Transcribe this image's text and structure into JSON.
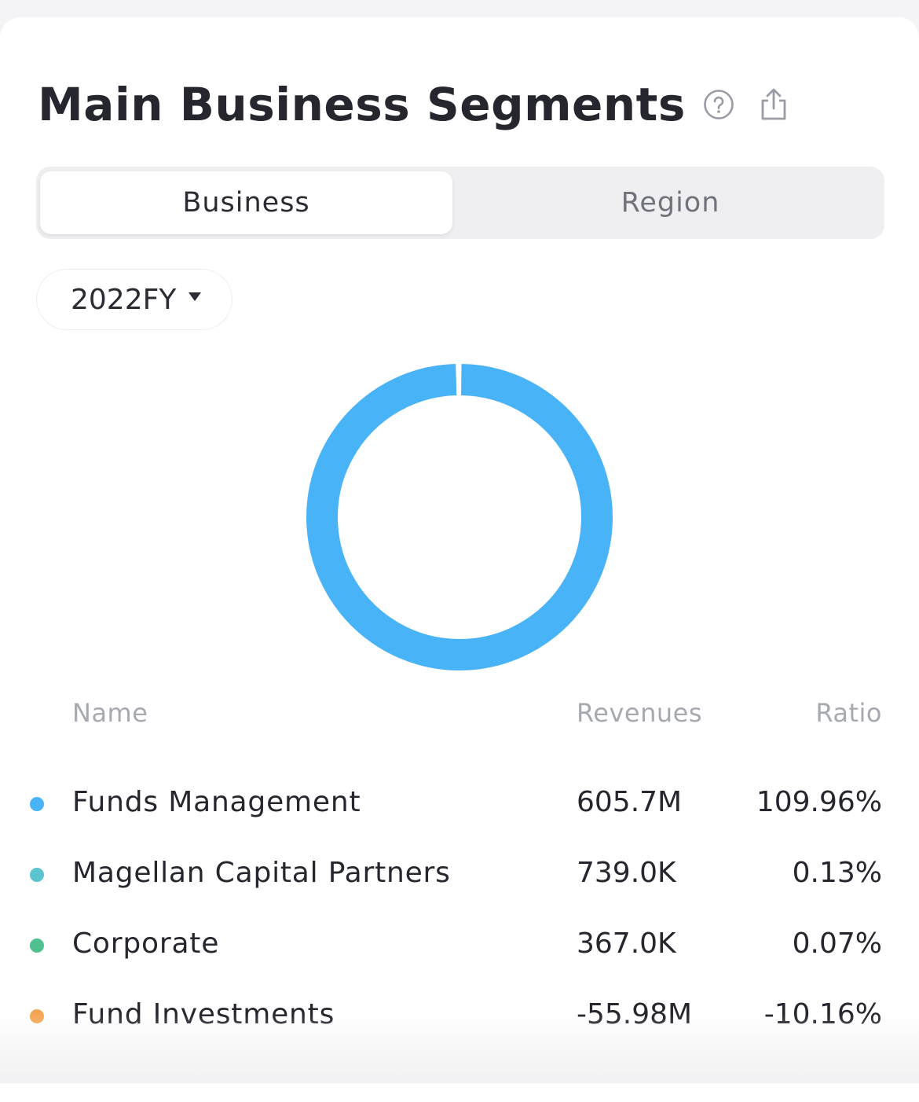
{
  "header": {
    "title": "Main Business Segments",
    "help_icon": "question-circle-icon",
    "share_icon": "share-icon"
  },
  "tabs": [
    {
      "label": "Business",
      "active": true
    },
    {
      "label": "Region",
      "active": false
    }
  ],
  "period": {
    "selected": "2022FY",
    "icon": "caret-down-icon"
  },
  "table": {
    "columns": {
      "name": "Name",
      "revenues": "Revenues",
      "ratio": "Ratio"
    },
    "rows": [
      {
        "name": "Funds Management",
        "revenues": "605.7M",
        "ratio": "109.96%",
        "color": "#49b3f8"
      },
      {
        "name": "Magellan Capital Partners",
        "revenues": "739.0K",
        "ratio": "0.13%",
        "color": "#5ac4cf"
      },
      {
        "name": "Corporate",
        "revenues": "367.0K",
        "ratio": "0.07%",
        "color": "#4fc08f"
      },
      {
        "name": "Fund Investments",
        "revenues": "-55.98M",
        "ratio": "-10.16%",
        "color": "#f5a654"
      }
    ]
  },
  "chart_data": {
    "type": "pie",
    "donut": true,
    "categories": [
      "Funds Management",
      "Magellan Capital Partners",
      "Corporate"
    ],
    "values": [
      109.96,
      0.13,
      0.07
    ],
    "colors": [
      "#49b3f8",
      "#5ac4cf",
      "#4fc08f"
    ],
    "legend": "bottom"
  }
}
